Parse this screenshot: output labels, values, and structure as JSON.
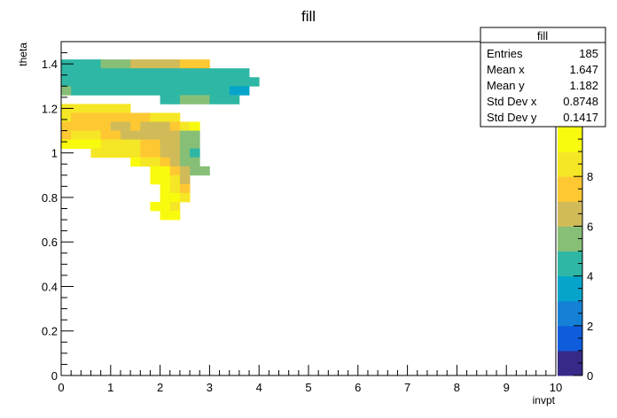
{
  "chart_data": {
    "type": "heatmap",
    "title": "fill",
    "xlabel": "invpt",
    "ylabel": "theta",
    "xlim": [
      0,
      10
    ],
    "ylim": [
      0,
      1.5
    ],
    "x_ticks": [
      "0",
      "1",
      "2",
      "3",
      "4",
      "5",
      "6",
      "7",
      "8",
      "9",
      "10"
    ],
    "y_ticks": [
      "0",
      "0.2",
      "0.4",
      "0.6",
      "0.8",
      "1",
      "1.2",
      "1.4"
    ],
    "colorbar": {
      "min": 0,
      "max": 10,
      "ticks": [
        "0",
        "2",
        "4",
        "6",
        "8"
      ]
    },
    "bin_size": {
      "dx": 0.2,
      "dy": 0.04
    },
    "bins": [
      [
        0.0,
        1.38,
        4
      ],
      [
        0.2,
        1.38,
        4
      ],
      [
        0.4,
        1.38,
        4
      ],
      [
        0.6,
        1.38,
        4
      ],
      [
        0.8,
        1.38,
        5
      ],
      [
        1.0,
        1.38,
        5
      ],
      [
        1.2,
        1.38,
        5
      ],
      [
        1.4,
        1.38,
        6
      ],
      [
        1.6,
        1.38,
        6
      ],
      [
        1.8,
        1.38,
        6
      ],
      [
        2.0,
        1.38,
        6
      ],
      [
        2.2,
        1.38,
        6
      ],
      [
        2.4,
        1.38,
        7
      ],
      [
        2.6,
        1.38,
        7
      ],
      [
        2.8,
        1.38,
        7
      ],
      [
        0.0,
        1.34,
        4
      ],
      [
        0.2,
        1.34,
        4
      ],
      [
        0.4,
        1.34,
        4
      ],
      [
        0.6,
        1.34,
        4
      ],
      [
        0.8,
        1.34,
        4
      ],
      [
        1.0,
        1.34,
        4
      ],
      [
        1.2,
        1.34,
        4
      ],
      [
        1.4,
        1.34,
        4
      ],
      [
        1.6,
        1.34,
        4
      ],
      [
        1.8,
        1.34,
        4
      ],
      [
        2.0,
        1.34,
        4
      ],
      [
        2.2,
        1.34,
        4
      ],
      [
        2.4,
        1.34,
        4
      ],
      [
        2.6,
        1.34,
        4
      ],
      [
        2.8,
        1.34,
        4
      ],
      [
        3.0,
        1.34,
        4
      ],
      [
        3.2,
        1.34,
        4
      ],
      [
        3.4,
        1.34,
        4
      ],
      [
        3.6,
        1.34,
        4
      ],
      [
        0.0,
        1.3,
        4
      ],
      [
        0.2,
        1.3,
        4
      ],
      [
        0.4,
        1.3,
        4
      ],
      [
        0.6,
        1.3,
        4
      ],
      [
        0.8,
        1.3,
        4
      ],
      [
        1.0,
        1.3,
        4
      ],
      [
        1.2,
        1.3,
        4
      ],
      [
        1.4,
        1.3,
        4
      ],
      [
        1.6,
        1.3,
        4
      ],
      [
        1.8,
        1.3,
        4
      ],
      [
        2.0,
        1.3,
        4
      ],
      [
        2.2,
        1.3,
        4
      ],
      [
        2.4,
        1.3,
        4
      ],
      [
        2.6,
        1.3,
        4
      ],
      [
        2.8,
        1.3,
        4
      ],
      [
        3.0,
        1.3,
        4
      ],
      [
        3.2,
        1.3,
        4
      ],
      [
        3.4,
        1.3,
        4
      ],
      [
        3.6,
        1.3,
        4
      ],
      [
        3.8,
        1.3,
        4
      ],
      [
        0.0,
        1.26,
        5
      ],
      [
        0.2,
        1.26,
        4
      ],
      [
        0.4,
        1.26,
        4
      ],
      [
        0.6,
        1.26,
        4
      ],
      [
        0.8,
        1.26,
        4
      ],
      [
        1.0,
        1.26,
        4
      ],
      [
        1.2,
        1.26,
        4
      ],
      [
        1.4,
        1.26,
        4
      ],
      [
        1.6,
        1.26,
        4
      ],
      [
        1.8,
        1.26,
        4
      ],
      [
        2.0,
        1.26,
        4
      ],
      [
        2.2,
        1.26,
        4
      ],
      [
        2.4,
        1.26,
        4
      ],
      [
        2.6,
        1.26,
        4
      ],
      [
        2.8,
        1.26,
        4
      ],
      [
        3.0,
        1.26,
        4
      ],
      [
        3.2,
        1.26,
        4
      ],
      [
        3.4,
        1.26,
        3
      ],
      [
        3.6,
        1.26,
        3
      ],
      [
        2.0,
        1.22,
        4
      ],
      [
        2.2,
        1.22,
        4
      ],
      [
        2.4,
        1.22,
        5
      ],
      [
        2.6,
        1.22,
        5
      ],
      [
        2.8,
        1.22,
        5
      ],
      [
        3.0,
        1.22,
        4
      ],
      [
        3.2,
        1.22,
        4
      ],
      [
        3.4,
        1.22,
        4
      ],
      [
        0.0,
        1.18,
        8
      ],
      [
        0.2,
        1.18,
        8
      ],
      [
        0.4,
        1.18,
        8
      ],
      [
        0.6,
        1.18,
        8
      ],
      [
        0.8,
        1.18,
        8
      ],
      [
        1.0,
        1.18,
        8
      ],
      [
        1.2,
        1.18,
        8
      ],
      [
        0.0,
        1.14,
        8
      ],
      [
        0.2,
        1.14,
        7
      ],
      [
        0.4,
        1.14,
        7
      ],
      [
        0.6,
        1.14,
        7
      ],
      [
        0.8,
        1.14,
        7
      ],
      [
        1.0,
        1.14,
        7
      ],
      [
        1.2,
        1.14,
        7
      ],
      [
        1.4,
        1.14,
        7
      ],
      [
        1.6,
        1.14,
        7
      ],
      [
        1.8,
        1.14,
        8
      ],
      [
        2.0,
        1.14,
        8
      ],
      [
        2.2,
        1.14,
        8
      ],
      [
        0.0,
        1.1,
        7
      ],
      [
        0.2,
        1.1,
        7
      ],
      [
        0.4,
        1.1,
        7
      ],
      [
        0.6,
        1.1,
        7
      ],
      [
        0.8,
        1.1,
        7
      ],
      [
        1.0,
        1.1,
        6
      ],
      [
        1.2,
        1.1,
        6
      ],
      [
        1.4,
        1.1,
        7
      ],
      [
        1.6,
        1.1,
        6
      ],
      [
        1.8,
        1.1,
        6
      ],
      [
        2.0,
        1.1,
        6
      ],
      [
        2.2,
        1.1,
        7
      ],
      [
        2.4,
        1.1,
        8
      ],
      [
        2.6,
        1.1,
        9
      ],
      [
        0.0,
        1.06,
        7
      ],
      [
        0.2,
        1.06,
        8
      ],
      [
        0.4,
        1.06,
        8
      ],
      [
        0.6,
        1.06,
        8
      ],
      [
        0.8,
        1.06,
        7
      ],
      [
        1.0,
        1.06,
        7
      ],
      [
        1.2,
        1.06,
        6
      ],
      [
        1.4,
        1.06,
        6
      ],
      [
        1.6,
        1.06,
        6
      ],
      [
        1.8,
        1.06,
        6
      ],
      [
        2.0,
        1.06,
        6
      ],
      [
        2.2,
        1.06,
        6
      ],
      [
        2.4,
        1.06,
        5
      ],
      [
        2.6,
        1.06,
        5
      ],
      [
        0.0,
        1.02,
        9
      ],
      [
        0.2,
        1.02,
        9
      ],
      [
        0.4,
        1.02,
        9
      ],
      [
        0.6,
        1.02,
        9
      ],
      [
        0.8,
        1.02,
        8
      ],
      [
        1.0,
        1.02,
        8
      ],
      [
        1.2,
        1.02,
        8
      ],
      [
        1.4,
        1.02,
        8
      ],
      [
        1.6,
        1.02,
        7
      ],
      [
        1.8,
        1.02,
        7
      ],
      [
        2.0,
        1.02,
        6
      ],
      [
        2.2,
        1.02,
        6
      ],
      [
        2.4,
        1.02,
        5
      ],
      [
        2.6,
        1.02,
        5
      ],
      [
        0.6,
        0.98,
        8
      ],
      [
        0.8,
        0.98,
        8
      ],
      [
        1.0,
        0.98,
        8
      ],
      [
        1.2,
        0.98,
        8
      ],
      [
        1.4,
        0.98,
        8
      ],
      [
        1.6,
        0.98,
        7
      ],
      [
        1.8,
        0.98,
        7
      ],
      [
        2.0,
        0.98,
        6
      ],
      [
        2.2,
        0.98,
        6
      ],
      [
        2.4,
        0.98,
        5
      ],
      [
        2.6,
        0.98,
        4
      ],
      [
        1.4,
        0.94,
        9
      ],
      [
        1.6,
        0.94,
        8
      ],
      [
        1.8,
        0.94,
        8
      ],
      [
        2.0,
        0.94,
        7
      ],
      [
        2.2,
        0.94,
        6
      ],
      [
        2.4,
        0.94,
        5
      ],
      [
        2.6,
        0.94,
        5
      ],
      [
        1.8,
        0.9,
        9
      ],
      [
        2.0,
        0.9,
        9
      ],
      [
        2.2,
        0.9,
        7
      ],
      [
        2.4,
        0.9,
        6
      ],
      [
        2.6,
        0.9,
        5
      ],
      [
        2.8,
        0.9,
        5
      ],
      [
        1.8,
        0.86,
        10
      ],
      [
        2.0,
        0.86,
        9
      ],
      [
        2.2,
        0.86,
        8
      ],
      [
        2.4,
        0.86,
        6
      ],
      [
        2.0,
        0.82,
        9
      ],
      [
        2.2,
        0.82,
        8
      ],
      [
        2.4,
        0.82,
        7
      ],
      [
        2.0,
        0.78,
        10
      ],
      [
        2.2,
        0.78,
        9
      ],
      [
        2.4,
        0.78,
        8
      ],
      [
        1.8,
        0.74,
        10
      ],
      [
        2.0,
        0.74,
        10
      ],
      [
        2.2,
        0.74,
        8
      ],
      [
        2.0,
        0.7,
        10
      ],
      [
        2.2,
        0.7,
        10
      ]
    ],
    "stats_box": {
      "title": "fill",
      "rows": [
        {
          "label": "Entries",
          "value": "185"
        },
        {
          "label": "Mean x",
          "value": "1.647"
        },
        {
          "label": "Mean y",
          "value": "1.182"
        },
        {
          "label": "Std Dev x",
          "value": "0.8748"
        },
        {
          "label": "Std Dev y",
          "value": "0.1417"
        }
      ]
    }
  }
}
